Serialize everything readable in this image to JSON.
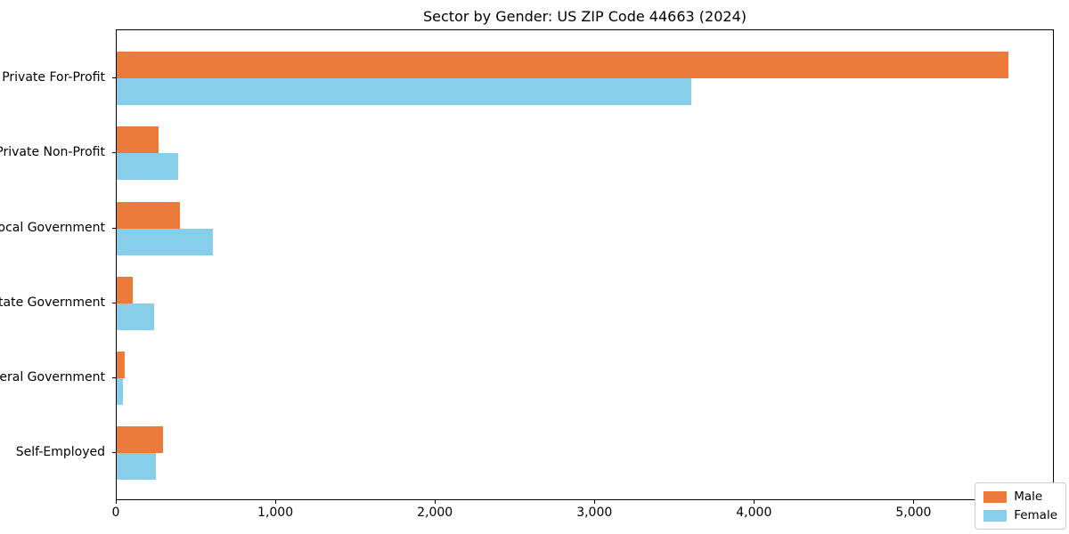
{
  "title": "Sector by Gender: US ZIP Code 44663 (2024)",
  "chart_data": {
    "type": "bar",
    "orientation": "horizontal",
    "title": "Sector by Gender: US ZIP Code 44663 (2024)",
    "xlabel": "",
    "ylabel": "",
    "categories": [
      "Private For-Profit",
      "Private Non-Profit",
      "Local Government",
      "State Government",
      "Federal Government",
      "Self-Employed"
    ],
    "series": [
      {
        "name": "Male",
        "color": "#eb7a3b",
        "values": [
          5600,
          262,
          396,
          100,
          50,
          290
        ]
      },
      {
        "name": "Female",
        "color": "#87ceeb",
        "values": [
          3610,
          385,
          602,
          234,
          37,
          245
        ]
      }
    ],
    "xlim": [
      0,
      5880
    ],
    "xticks": [
      0,
      1000,
      2000,
      3000,
      4000,
      5000
    ],
    "xtick_labels": [
      "0",
      "1,000",
      "2,000",
      "3,000",
      "4,000",
      "5,000"
    ],
    "grid": false,
    "legend_position": "lower right",
    "legend_title": ""
  }
}
